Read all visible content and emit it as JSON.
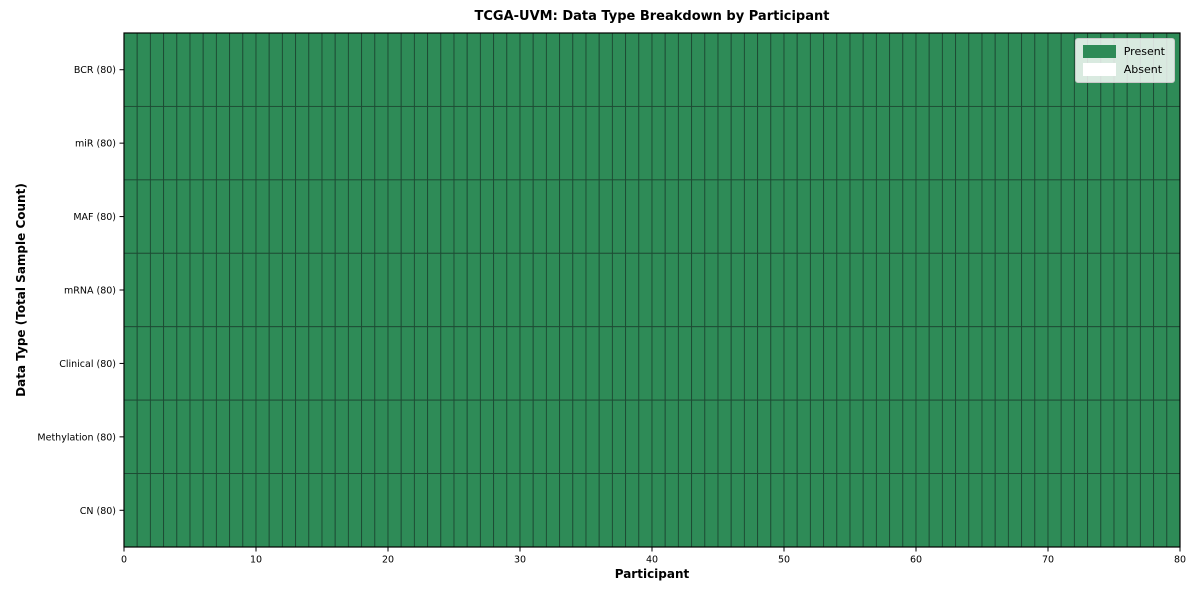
{
  "chart_data": {
    "type": "heatmap",
    "title": "TCGA-UVM: Data Type Breakdown by Participant",
    "xlabel": "Participant",
    "ylabel": "Data Type (Total Sample Count)",
    "xlim": [
      0,
      80
    ],
    "x_ticks": [
      0,
      10,
      20,
      30,
      40,
      50,
      60,
      70,
      80
    ],
    "n_participants": 80,
    "rows": [
      {
        "label": "BCR (80)",
        "data_type": "BCR",
        "total_samples": 80,
        "present_count": 80
      },
      {
        "label": "miR (80)",
        "data_type": "miR",
        "total_samples": 80,
        "present_count": 80
      },
      {
        "label": "MAF (80)",
        "data_type": "MAF",
        "total_samples": 80,
        "present_count": 80
      },
      {
        "label": "mRNA (80)",
        "data_type": "mRNA",
        "total_samples": 80,
        "present_count": 80
      },
      {
        "label": "Clinical (80)",
        "data_type": "Clinical",
        "total_samples": 80,
        "present_count": 80
      },
      {
        "label": "Methylation (80)",
        "data_type": "Methylation",
        "total_samples": 80,
        "present_count": 80
      },
      {
        "label": "CN (80)",
        "data_type": "CN",
        "total_samples": 80,
        "present_count": 80
      }
    ],
    "legend": {
      "position": "upper right",
      "entries": [
        {
          "label": "Present",
          "color": "#2e8b57"
        },
        {
          "label": "Absent",
          "color": "#ffffff"
        }
      ]
    },
    "colors": {
      "present": "#2e8b57",
      "absent": "#ffffff",
      "cell_edge": "#1d4a33",
      "spine": "#000000",
      "tick": "#000000",
      "text": "#000000"
    },
    "grid": false
  }
}
